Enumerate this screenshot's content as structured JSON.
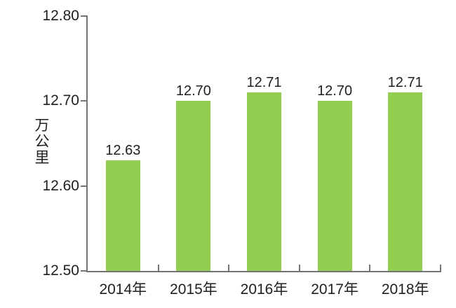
{
  "chart_data": {
    "type": "bar",
    "title": "",
    "ylabel": "万公里",
    "xlabel": "",
    "categories": [
      "2014年",
      "2015年",
      "2016年",
      "2017年",
      "2018年"
    ],
    "values": [
      12.63,
      12.7,
      12.71,
      12.7,
      12.71
    ],
    "value_labels": [
      "12.63",
      "12.70",
      "12.71",
      "12.70",
      "12.71"
    ],
    "ylim": [
      12.5,
      12.8
    ],
    "y_ticks": [
      {
        "value": 12.8,
        "label": "12.80"
      },
      {
        "value": 12.7,
        "label": "12.70"
      },
      {
        "value": 12.6,
        "label": "12.60"
      },
      {
        "value": 12.5,
        "label": "12.50"
      }
    ],
    "grid": false,
    "legend": null,
    "colors": {
      "bar_fill": "#92CE50",
      "axis": "#737373",
      "text": "#1f1f1f",
      "background": "#ffffff"
    }
  }
}
